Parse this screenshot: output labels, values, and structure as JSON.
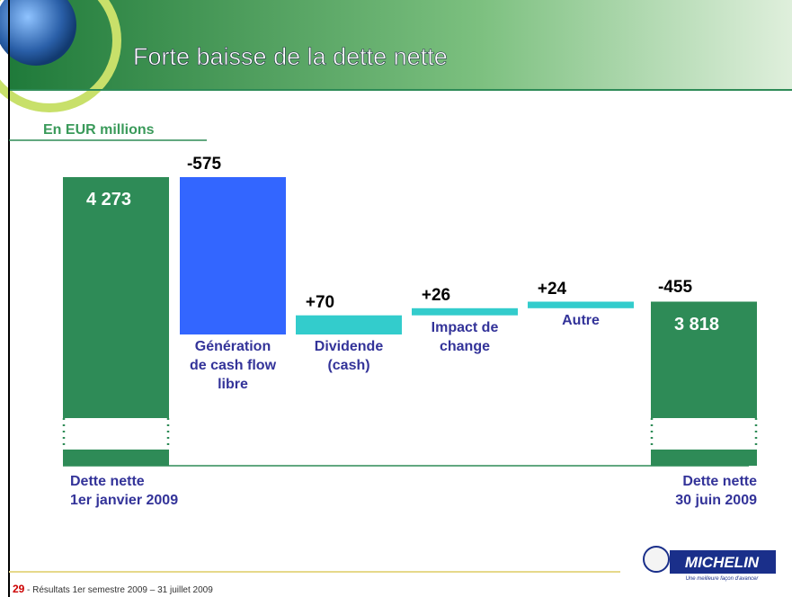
{
  "slide": {
    "title": "Forte baisse de la dette nette",
    "subtitle": "En EUR millions",
    "page_number": "29",
    "footer": "- Résultats 1er semestre  2009 – 31 juillet 2009",
    "logo": "MICHELIN",
    "logo_tagline": "Une meilleure façon d'avancer"
  },
  "chart_data": {
    "type": "waterfall",
    "categories": [
      "Dette nette\n1er janvier 2009",
      "Génération\nde cash flow\nlibre",
      "Dividende\n(cash)",
      "Impact de\nchange",
      "Autre",
      "Dette nette\n30 juin 2009"
    ],
    "values": [
      4273,
      -575,
      70,
      26,
      24,
      3818
    ],
    "value_labels": [
      "4 273",
      "-575",
      "+70",
      "+26",
      "+24",
      "3 818"
    ],
    "net_change": -455,
    "colors": [
      "#2e8b57",
      "#3366ff",
      "#33cccc",
      "#33cccc",
      "#33cccc",
      "#2e8b57"
    ]
  }
}
